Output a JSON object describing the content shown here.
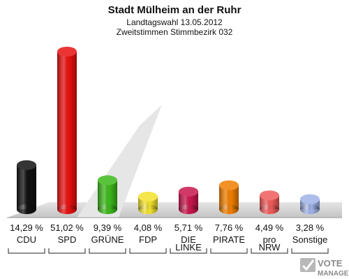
{
  "chart_data": {
    "type": "bar",
    "title": "Stadt Mülheim an der Ruhr",
    "subtitle": "Landtagswahl 13.05.2012",
    "subtitle2": "Zweitstimmen Stimmbezirk 032",
    "categories": [
      {
        "lines": [
          "CDU"
        ]
      },
      {
        "lines": [
          "SPD"
        ]
      },
      {
        "lines": [
          "GRÜNE"
        ]
      },
      {
        "lines": [
          "FDP"
        ]
      },
      {
        "lines": [
          "DIE",
          "LINKE"
        ]
      },
      {
        "lines": [
          "PIRATE"
        ]
      },
      {
        "lines": [
          "pro",
          "NRW"
        ]
      },
      {
        "lines": [
          "Sonstige"
        ]
      }
    ],
    "values": [
      14.29,
      51.02,
      9.39,
      4.08,
      5.71,
      7.76,
      4.49,
      3.28
    ],
    "value_labels": [
      "14,29 %",
      "51,02 %",
      "9,39 %",
      "4,08 %",
      "5,71 %",
      "7,76 %",
      "4,49 %",
      "3,28 %"
    ],
    "colors": [
      "#111111",
      "#e81010",
      "#3cb81a",
      "#f2e22c",
      "#c8164c",
      "#f07f00",
      "#ee5a5a",
      "#9fb2e8"
    ],
    "ylim": [
      0,
      51.02
    ],
    "grid": false,
    "legend": "none"
  },
  "logo": {
    "line1": "VOTE",
    "line2": "MANAGER"
  }
}
